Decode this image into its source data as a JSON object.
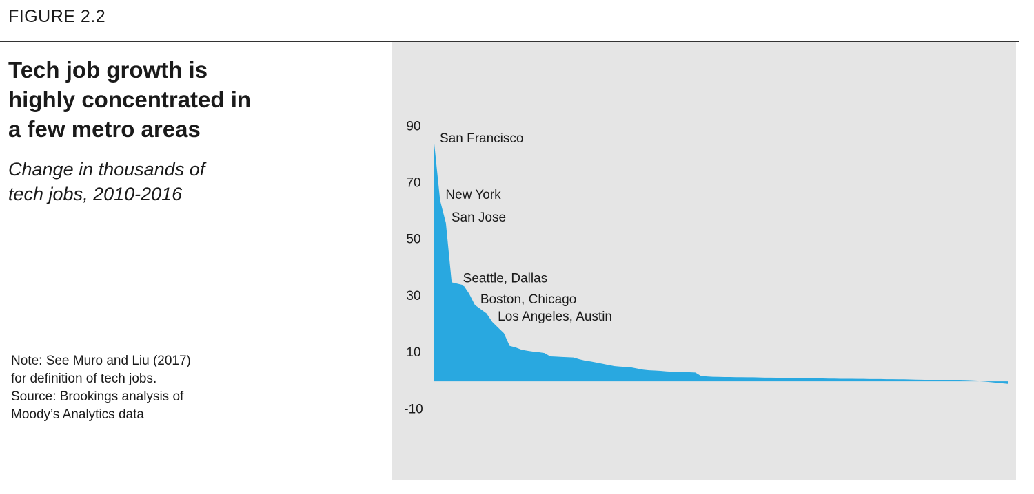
{
  "figure_label": "FIGURE 2.2",
  "note": "Note: See Muro and Liu (2017)\nfor definition of tech jobs.\nSource: Brookings analysis of\nMoody’s Analytics data",
  "chart_data": {
    "type": "area",
    "title": "Tech job growth is\nhighly concentrated in\na few metro areas",
    "subtitle": "Change in thousands of\ntech jobs, 2010-2016",
    "color": "#29a8e0",
    "ylim": [
      -35,
      120
    ],
    "yticks": [
      90,
      70,
      50,
      30,
      10,
      -10
    ],
    "grid": false,
    "values": [
      84,
      64,
      56,
      35,
      34.5,
      34,
      31,
      27,
      25.5,
      24,
      21,
      19,
      17,
      12.5,
      12,
      11.2,
      10.8,
      10.5,
      10.3,
      10,
      8.8,
      8.7,
      8.6,
      8.5,
      8.4,
      7.8,
      7.3,
      7,
      6.6,
      6.2,
      5.8,
      5.4,
      5.2,
      5.1,
      4.9,
      4.5,
      4.1,
      3.9,
      3.8,
      3.7,
      3.5,
      3.4,
      3.3,
      3.3,
      3.2,
      3.1,
      1.9,
      1.7,
      1.6,
      1.55,
      1.5,
      1.5,
      1.45,
      1.45,
      1.4,
      1.4,
      1.35,
      1.3,
      1.3,
      1.25,
      1.2,
      1.2,
      1.15,
      1.1,
      1.1,
      1.05,
      1.0,
      1.0,
      0.95,
      0.95,
      0.9,
      0.9,
      0.9,
      0.85,
      0.85,
      0.8,
      0.8,
      0.8,
      0.75,
      0.75,
      0.7,
      0.7,
      0.65,
      0.6,
      0.55,
      0.5,
      0.5,
      0.45,
      0.4,
      0.35,
      0.3,
      0.25,
      0.2,
      0.1,
      0,
      -0.1,
      -0.3,
      -0.5,
      -0.7,
      -0.9
    ],
    "annotations": [
      {
        "text": "San Francisco",
        "index": 0
      },
      {
        "text": "New York",
        "index": 1
      },
      {
        "text": "San Jose",
        "index": 2
      },
      {
        "text": "Seattle, Dallas",
        "index": 4
      },
      {
        "text": "Boston, Chicago",
        "index": 7
      },
      {
        "text": "Los Angeles, Austin",
        "index": 10
      }
    ]
  }
}
